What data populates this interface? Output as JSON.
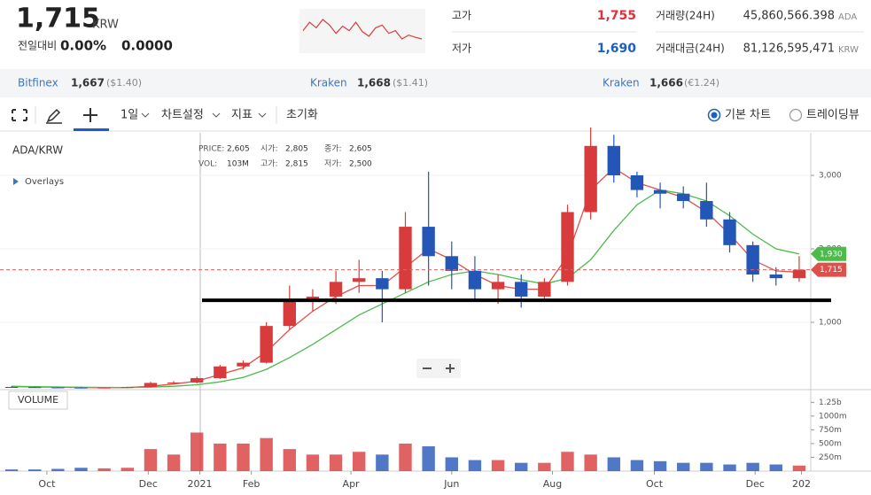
{
  "header": {
    "price": "1,715",
    "currency": "KRW",
    "change_label": "전일대비",
    "change_pct": "0.00%",
    "change": "0.0000",
    "sparkline": [
      1730,
      1745,
      1735,
      1750,
      1740,
      1725,
      1738,
      1730,
      1745,
      1728,
      1720,
      1735,
      1740,
      1725,
      1730,
      1715,
      1722,
      1718,
      1715
    ],
    "stats": [
      {
        "label": "고가",
        "value": "1,755"
      },
      {
        "label": "저가",
        "value": "1,690"
      },
      {
        "label": "거래량(24H)",
        "value": "45,860,566.398",
        "unit": "ADA"
      },
      {
        "label": "거래대금(24H)",
        "value": "81,126,595,471",
        "unit": "KRW"
      }
    ]
  },
  "exchanges": [
    {
      "name": "Bitfinex",
      "price": "1,667",
      "quote": "($1.40)"
    },
    {
      "name": "Kraken",
      "price": "1,668",
      "quote": "($1.41)"
    },
    {
      "name": "Kraken",
      "price": "1,666",
      "quote": "(€1.24)"
    }
  ],
  "toolbar": {
    "interval": "1일",
    "menus": [
      "차트설정",
      "지표"
    ],
    "reset": "초기화",
    "modes": [
      "기본 차트",
      "트레이딩뷰"
    ]
  },
  "chart_data": {
    "type": "candlestick",
    "title": "ADA/KRW",
    "overlays": "Overlays",
    "info": [
      {
        "label": "PRICE:",
        "value": "2,605"
      },
      {
        "label": "시가:",
        "value": "2,805"
      },
      {
        "label": "종가:",
        "value": "2,605"
      },
      {
        "label": "VOL:",
        "value": "103M"
      },
      {
        "label": "고가:",
        "value": "2,815"
      },
      {
        "label": "저가:",
        "value": "2,500"
      }
    ],
    "x": [
      1,
      3,
      5,
      7,
      9,
      11,
      13,
      15,
      17,
      19,
      21,
      23,
      25,
      27,
      29,
      31,
      33,
      35,
      37,
      39,
      41,
      43,
      45,
      47,
      49,
      51,
      53,
      55,
      57,
      59,
      61,
      63,
      65,
      67,
      69
    ],
    "open": [
      120,
      118,
      115,
      112,
      110,
      112,
      120,
      175,
      180,
      240,
      400,
      450,
      950,
      1300,
      1350,
      1550,
      1600,
      1450,
      2300,
      1900,
      1700,
      1450,
      1550,
      1350,
      1550,
      2500,
      3400,
      3000,
      2800,
      2750,
      2650,
      2400,
      2050,
      1650,
      1600
    ],
    "high": [
      130,
      125,
      122,
      120,
      118,
      125,
      190,
      200,
      260,
      420,
      480,
      1000,
      1500,
      1450,
      1700,
      1850,
      1700,
      2500,
      3050,
      2100,
      1900,
      1650,
      1650,
      1600,
      2600,
      3650,
      3550,
      3050,
      2900,
      2850,
      2900,
      2500,
      2100,
      1750,
      1900
    ],
    "low": [
      110,
      110,
      108,
      105,
      104,
      108,
      115,
      160,
      170,
      230,
      360,
      440,
      900,
      1150,
      1250,
      1400,
      1000,
      1400,
      1500,
      1450,
      1300,
      1250,
      1200,
      1300,
      1500,
      2400,
      2900,
      2700,
      2550,
      2550,
      2300,
      1950,
      1550,
      1500,
      1550
    ],
    "close": [
      118,
      115,
      112,
      110,
      112,
      120,
      175,
      180,
      240,
      400,
      450,
      950,
      1300,
      1350,
      1550,
      1600,
      1450,
      2300,
      1900,
      1700,
      1450,
      1550,
      1350,
      1550,
      2500,
      3400,
      3000,
      2800,
      2750,
      2650,
      2400,
      2050,
      1650,
      1600,
      1715
    ],
    "up_color": "#d83b3b",
    "down_color": "#2456b8",
    "ma": [
      {
        "color": "#e0504a",
        "values": [
          125,
          120,
          116,
          113,
          111,
          112,
          130,
          160,
          200,
          290,
          380,
          600,
          900,
          1150,
          1350,
          1500,
          1500,
          1750,
          2000,
          1850,
          1650,
          1500,
          1450,
          1450,
          1900,
          2800,
          3100,
          2900,
          2800,
          2700,
          2500,
          2200,
          1850,
          1700,
          1680
        ]
      },
      {
        "color": "#4cbb4c",
        "last_label": "1,930",
        "values": [
          130,
          125,
          120,
          117,
          114,
          113,
          118,
          130,
          150,
          190,
          250,
          360,
          520,
          700,
          900,
          1100,
          1250,
          1400,
          1550,
          1650,
          1700,
          1650,
          1580,
          1520,
          1600,
          1850,
          2250,
          2600,
          2800,
          2750,
          2650,
          2450,
          2200,
          2000,
          1930
        ]
      }
    ],
    "last_price": 1715,
    "last_label": "1,715",
    "hline": 1300,
    "xlim": [
      0,
      70
    ],
    "xticks": [
      {
        "value": 4.05,
        "label": "Oct"
      },
      {
        "value": 12.8,
        "label": "Dec"
      },
      {
        "value": 17.25,
        "label": "2021"
      },
      {
        "value": 21.7,
        "label": "Feb"
      },
      {
        "value": 30.3,
        "label": "Apr"
      },
      {
        "value": 39,
        "label": "Jun"
      },
      {
        "value": 47.7,
        "label": "Aug"
      },
      {
        "value": 56.5,
        "label": "Oct"
      },
      {
        "value": 65.2,
        "label": "Dec"
      },
      {
        "value": 69.2,
        "label": "202"
      }
    ],
    "ylim": [
      84,
      3578
    ],
    "yticks": [
      {
        "value": 1000,
        "label": "1,000"
      },
      {
        "value": 2000,
        "label": "2,000"
      },
      {
        "value": 3000,
        "label": "3,000"
      }
    ],
    "grid": true,
    "volume": {
      "title": "VOLUME",
      "ylim": [
        0,
        1480000000
      ],
      "values": [
        30000000,
        30000000,
        40000000,
        60000000,
        50000000,
        60000000,
        400000000,
        300000000,
        700000000,
        500000000,
        500000000,
        600000000,
        400000000,
        300000000,
        300000000,
        350000000,
        300000000,
        500000000,
        450000000,
        250000000,
        200000000,
        200000000,
        150000000,
        150000000,
        350000000,
        300000000,
        250000000,
        200000000,
        180000000,
        150000000,
        150000000,
        120000000,
        150000000,
        120000000,
        100000000
      ],
      "yticks": [
        {
          "value": 250000000,
          "label": "250m"
        },
        {
          "value": 500000000,
          "label": "500m"
        },
        {
          "value": 750000000,
          "label": "750m"
        },
        {
          "value": 1000000000,
          "label": "1000m"
        },
        {
          "value": 1250000000,
          "label": "1.25b"
        }
      ]
    }
  }
}
